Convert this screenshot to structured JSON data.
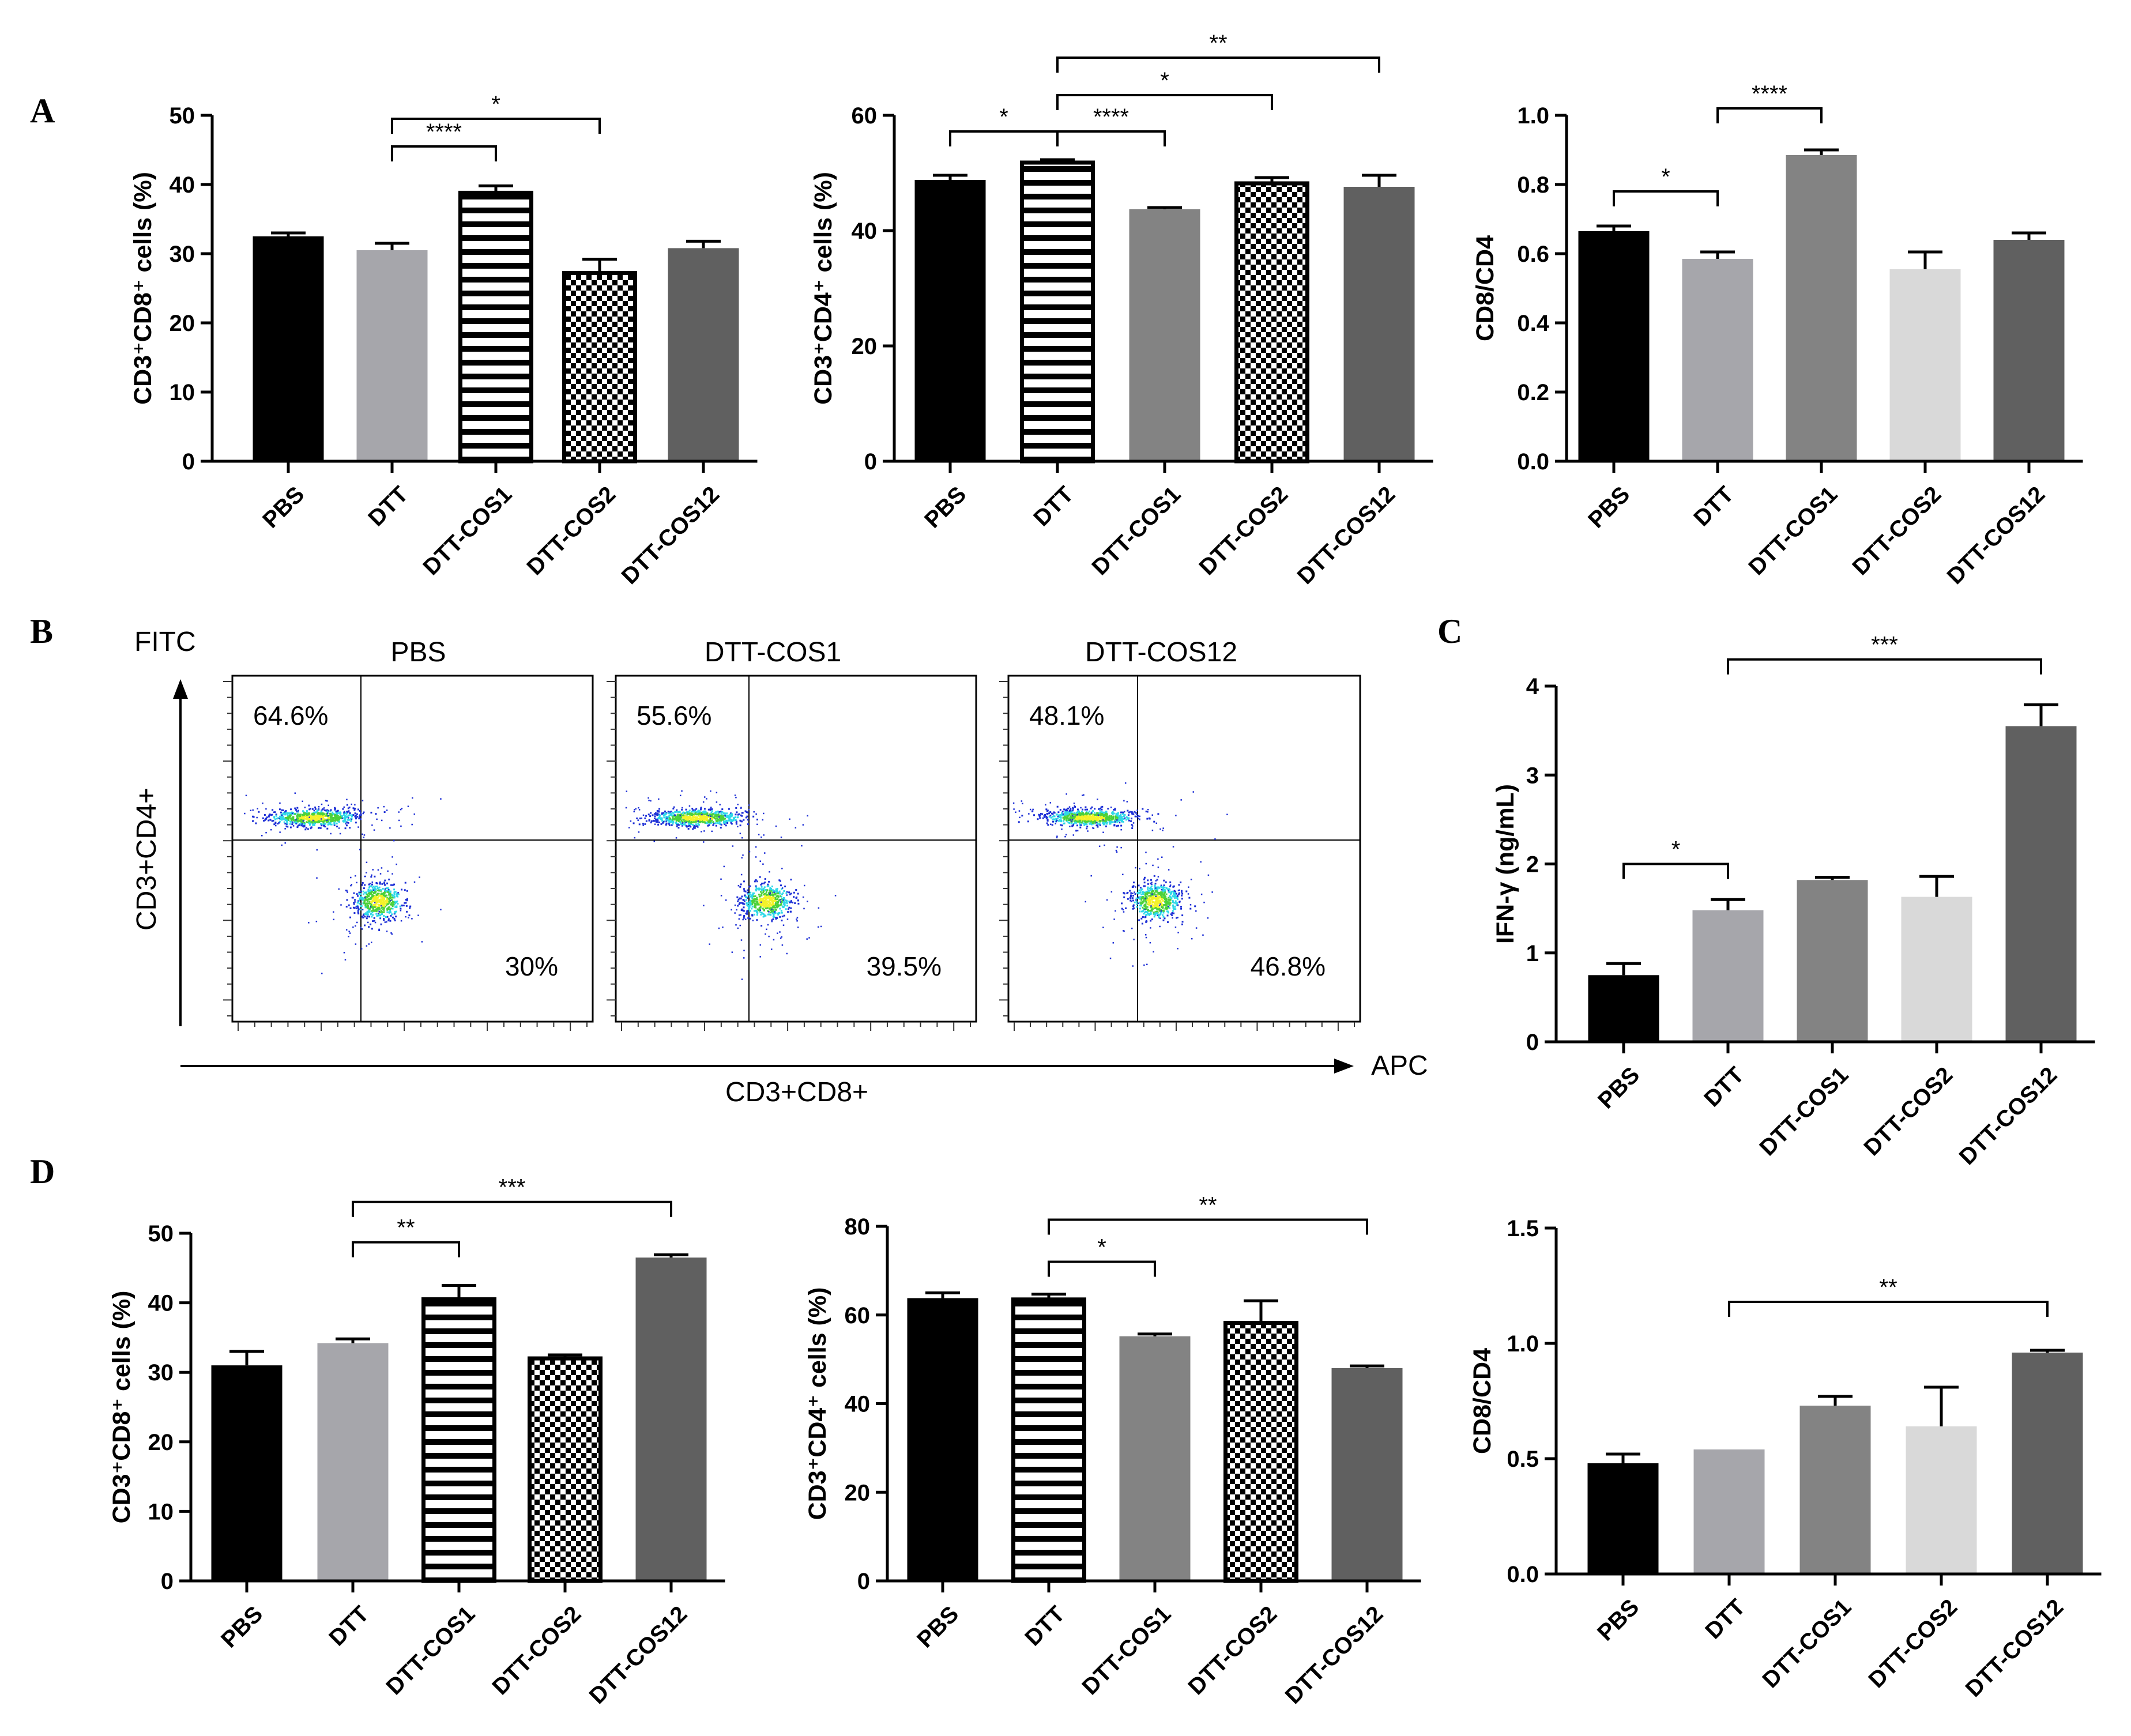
{
  "figure": {
    "panel_letters": [
      "A",
      "B",
      "C",
      "D"
    ]
  },
  "colors": {
    "black": "#000000",
    "light_gray": "#a6a6ab",
    "mid_gray": "#838383",
    "pale_gray": "#d9d9d9",
    "dark_gray": "#606060",
    "blue": "#1d2fd6",
    "cyan": "#2fd8e8",
    "green": "#4cd13a",
    "yellow": "#f4f22a"
  },
  "chart_data": [
    {
      "id": "A1",
      "type": "bar",
      "panel": "A",
      "categories": [
        "PBS",
        "DTT",
        "DTT-COS1",
        "DTT-COS2",
        "DTT-COS12"
      ],
      "values": [
        32.5,
        30.5,
        38.8,
        27.2,
        30.8
      ],
      "errors": [
        0.5,
        1.0,
        1.0,
        2.0,
        1.0
      ],
      "patterns": [
        "solid-black",
        "solid-light",
        "hstripe",
        "checker",
        "solid-dark"
      ],
      "ylabel": "CD3⁺CD8⁺ cells (%)",
      "ylim": [
        0,
        50
      ],
      "yticks": [
        0,
        10,
        20,
        30,
        40,
        50
      ],
      "ytick_labels": [
        "0",
        "10",
        "20",
        "30",
        "40",
        "50"
      ],
      "significance": [
        {
          "from": 1,
          "to": 2,
          "label": "****",
          "y": 45.5
        },
        {
          "from": 1,
          "to": 3,
          "label": "*",
          "y": 49.5
        }
      ]
    },
    {
      "id": "A2",
      "type": "bar",
      "panel": "A",
      "categories": [
        "PBS",
        "DTT",
        "DTT-COS1",
        "DTT-COS2",
        "DTT-COS12"
      ],
      "values": [
        48.8,
        51.8,
        43.7,
        48.2,
        47.6
      ],
      "errors": [
        0.8,
        0.5,
        0.3,
        1.0,
        2.0
      ],
      "patterns": [
        "solid-black",
        "hstripe",
        "solid-mid",
        "checker",
        "solid-dark"
      ],
      "ylabel": "CD3⁺CD4⁺ cells (%)",
      "ylim": [
        0,
        60
      ],
      "yticks": [
        0,
        20,
        40,
        60
      ],
      "ytick_labels": [
        "0",
        "20",
        "40",
        "60"
      ],
      "significance": [
        {
          "from": 0,
          "to": 1,
          "label": "*",
          "y": 57.2
        },
        {
          "from": 1,
          "to": 2,
          "label": "****",
          "y": 57.2
        },
        {
          "from": 1,
          "to": 3,
          "label": "*",
          "y": 63.5
        },
        {
          "from": 1,
          "to": 4,
          "label": "**",
          "y": 70.0
        }
      ]
    },
    {
      "id": "A3",
      "type": "bar",
      "panel": "A",
      "categories": [
        "PBS",
        "DTT",
        "DTT-COS1",
        "DTT-COS2",
        "DTT-COS12"
      ],
      "values": [
        0.665,
        0.585,
        0.885,
        0.555,
        0.64
      ],
      "errors": [
        0.015,
        0.02,
        0.015,
        0.05,
        0.02
      ],
      "patterns": [
        "solid-black",
        "solid-light",
        "solid-mid",
        "solid-pale",
        "solid-dark"
      ],
      "ylabel": "CD8/CD4",
      "ylim": [
        0,
        1.0
      ],
      "yticks": [
        0,
        0.2,
        0.4,
        0.6,
        0.8,
        1.0
      ],
      "ytick_labels": [
        "0.0",
        "0.2",
        "0.4",
        "0.6",
        "0.8",
        "1.0"
      ],
      "significance": [
        {
          "from": 0,
          "to": 1,
          "label": "*",
          "y": 0.78
        },
        {
          "from": 1,
          "to": 2,
          "label": "****",
          "y": 1.02
        }
      ]
    },
    {
      "id": "C",
      "type": "bar",
      "panel": "C",
      "categories": [
        "PBS",
        "DTT",
        "DTT-COS1",
        "DTT-COS2",
        "DTT-COS12"
      ],
      "values": [
        0.75,
        1.48,
        1.82,
        1.63,
        3.55
      ],
      "errors": [
        0.13,
        0.12,
        0.03,
        0.23,
        0.24
      ],
      "patterns": [
        "solid-black",
        "solid-light",
        "solid-mid",
        "solid-pale",
        "solid-dark"
      ],
      "ylabel": "IFN-γ (ng/mL)",
      "ylim": [
        0,
        4
      ],
      "yticks": [
        0,
        1,
        2,
        3,
        4
      ],
      "ytick_labels": [
        "0",
        "1",
        "2",
        "3",
        "4"
      ],
      "significance": [
        {
          "from": 0,
          "to": 1,
          "label": "*",
          "y": 2.0
        },
        {
          "from": 1,
          "to": 4,
          "label": "***",
          "y": 4.3
        }
      ]
    },
    {
      "id": "D1",
      "type": "bar",
      "panel": "D",
      "categories": [
        "PBS",
        "DTT",
        "DTT-COS1",
        "DTT-COS2",
        "DTT-COS12"
      ],
      "values": [
        31.0,
        34.2,
        40.5,
        32.0,
        46.5
      ],
      "errors": [
        2.0,
        0.6,
        2.0,
        0.5,
        0.4
      ],
      "patterns": [
        "solid-black",
        "solid-light",
        "hstripe",
        "checker",
        "solid-dark"
      ],
      "ylabel": "CD3⁺CD8⁺ cells (%)",
      "ylim": [
        0,
        50
      ],
      "yticks": [
        0,
        10,
        20,
        30,
        40,
        50
      ],
      "ytick_labels": [
        "0",
        "10",
        "20",
        "30",
        "40",
        "50"
      ],
      "significance": [
        {
          "from": 1,
          "to": 2,
          "label": "**",
          "y": 48.7
        },
        {
          "from": 1,
          "to": 4,
          "label": "***",
          "y": 54.5
        }
      ]
    },
    {
      "id": "D2",
      "type": "bar",
      "panel": "D",
      "categories": [
        "PBS",
        "DTT",
        "DTT-COS1",
        "DTT-COS2",
        "DTT-COS12"
      ],
      "values": [
        63.8,
        63.5,
        55.2,
        58.2,
        48.0
      ],
      "errors": [
        1.2,
        1.2,
        0.5,
        5.0,
        0.5
      ],
      "patterns": [
        "solid-black",
        "hstripe",
        "solid-mid",
        "checker",
        "solid-dark"
      ],
      "ylabel": "CD3⁺CD4⁺ cells (%)",
      "ylim": [
        0,
        80
      ],
      "yticks": [
        0,
        20,
        40,
        60,
        80
      ],
      "ytick_labels": [
        "0",
        "20",
        "40",
        "60",
        "80"
      ],
      "significance": [
        {
          "from": 1,
          "to": 2,
          "label": "*",
          "y": 72.0
        },
        {
          "from": 1,
          "to": 4,
          "label": "**",
          "y": 81.5
        }
      ]
    },
    {
      "id": "D3",
      "type": "bar",
      "panel": "D",
      "categories": [
        "PBS",
        "DTT",
        "DTT-COS1",
        "DTT-COS2",
        "DTT-COS12"
      ],
      "values": [
        0.48,
        0.54,
        0.73,
        0.64,
        0.96
      ],
      "errors": [
        0.04,
        0.0,
        0.04,
        0.17,
        0.01
      ],
      "patterns": [
        "solid-black",
        "solid-light",
        "solid-mid",
        "solid-pale",
        "solid-dark"
      ],
      "ylabel": "CD8/CD4",
      "ylim": [
        0,
        1.5
      ],
      "yticks": [
        0,
        0.5,
        1.0,
        1.5
      ],
      "ytick_labels": [
        "0.0",
        "0.5",
        "1.0",
        "1.5"
      ],
      "significance": [
        {
          "from": 1,
          "to": 4,
          "label": "**",
          "y": 1.18
        }
      ]
    },
    {
      "id": "B",
      "type": "scatter",
      "panel": "B",
      "y_axis_label": "CD3+CD4+",
      "y_axis_channel": "FITC",
      "x_axis_label": "CD3+CD8+",
      "x_axis_channel": "APC",
      "plots": [
        {
          "title": "PBS",
          "upper_left": "64.6%",
          "lower_right": "30%"
        },
        {
          "title": "DTT-COS1",
          "upper_left": "55.6%",
          "lower_right": "39.5%"
        },
        {
          "title": "DTT-COS12",
          "upper_left": "48.1%",
          "lower_right": "46.8%"
        }
      ]
    }
  ]
}
